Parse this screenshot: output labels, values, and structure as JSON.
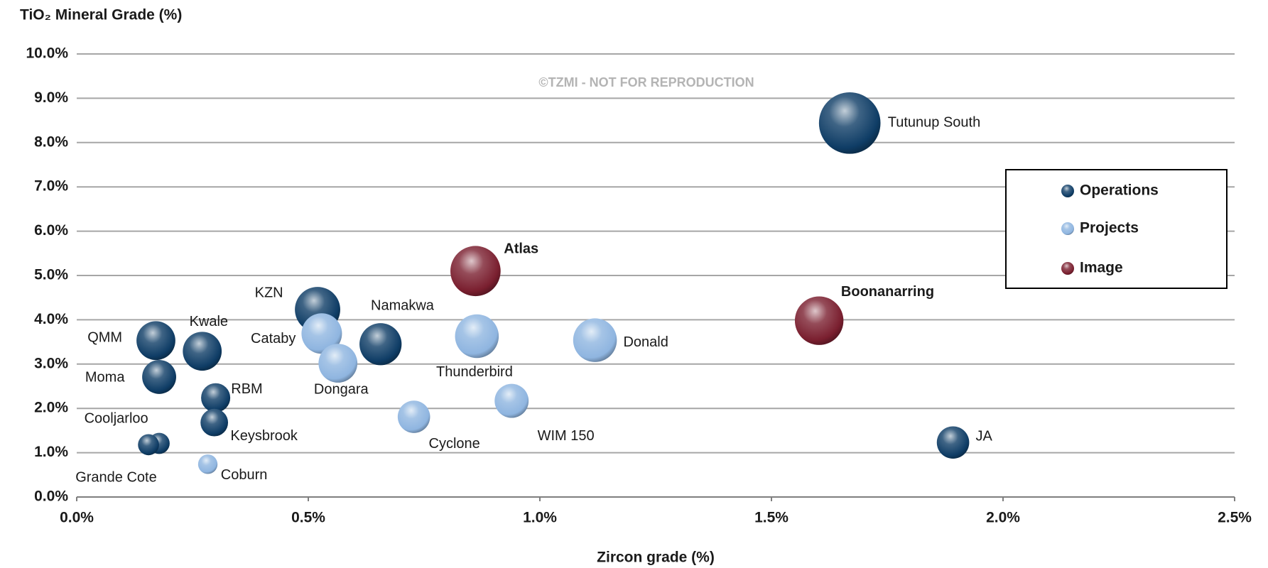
{
  "chart_data": {
    "type": "bubble",
    "y_label": "TiO₂ Mineral Grade (%)",
    "x_label": "Zircon grade (%)",
    "annotation": "©TZMI - NOT FOR REPRODUCTION",
    "xlim": [
      0,
      2.5
    ],
    "ylim": [
      0,
      10
    ],
    "xticks": [
      {
        "value": 0,
        "label": "0.0%"
      },
      {
        "value": 0.5,
        "label": "0.5%"
      },
      {
        "value": 1,
        "label": "1.0%"
      },
      {
        "value": 1.5,
        "label": "1.5%"
      },
      {
        "value": 2,
        "label": "2.0%"
      },
      {
        "value": 2.5,
        "label": "2.5%"
      }
    ],
    "yticks": [
      {
        "value": 0,
        "label": "0.0%"
      },
      {
        "value": 1,
        "label": "1.0%"
      },
      {
        "value": 2,
        "label": "2.0%"
      },
      {
        "value": 3,
        "label": "3.0%"
      },
      {
        "value": 4,
        "label": "4.0%"
      },
      {
        "value": 5,
        "label": "5.0%"
      },
      {
        "value": 6,
        "label": "6.0%"
      },
      {
        "value": 7,
        "label": "7.0%"
      },
      {
        "value": 8,
        "label": "8.0%"
      },
      {
        "value": 9,
        "label": "9.0%"
      },
      {
        "value": 10,
        "label": "10.0%"
      }
    ],
    "grid": true,
    "legend": "right",
    "series": [
      {
        "name": "Operations",
        "color": "#0f3d66",
        "labels": [
          "Tutunup South",
          "JA",
          "KZN",
          "Namakwa",
          "QMM",
          "Kwale",
          "Moma",
          "RBM",
          "Keysbrook",
          "Cooljarloo",
          "Grande Cote"
        ],
        "x": [
          1.669,
          1.892,
          0.52,
          0.656,
          0.171,
          0.271,
          0.178,
          0.3,
          0.297,
          0.178,
          0.155
        ],
        "values": [
          8.44,
          1.23,
          4.23,
          3.45,
          3.53,
          3.29,
          2.71,
          2.24,
          1.68,
          1.21,
          1.18
        ],
        "sizes": [
          38,
          20,
          28,
          26,
          24,
          24,
          21,
          18,
          17,
          13,
          13
        ]
      },
      {
        "name": "Projects",
        "color": "#8fb5e0",
        "labels": [
          "Donald",
          "Thunderbird",
          "WIM 150",
          "Cyclone",
          "Cataby",
          "Dongara",
          "Coburn"
        ],
        "x": [
          1.119,
          0.864,
          0.939,
          0.728,
          0.529,
          0.564,
          0.283
        ],
        "values": [
          3.54,
          3.63,
          2.17,
          1.81,
          3.69,
          3.02,
          0.74
        ],
        "sizes": [
          27,
          27,
          21,
          20,
          25,
          24,
          12
        ]
      },
      {
        "name": "Image",
        "color": "#7a1f2f",
        "labels": [
          "Boonanarring",
          "Atlas"
        ],
        "x": [
          1.603,
          0.861
        ],
        "values": [
          3.98,
          5.1
        ],
        "sizes": [
          30,
          31
        ]
      }
    ]
  }
}
